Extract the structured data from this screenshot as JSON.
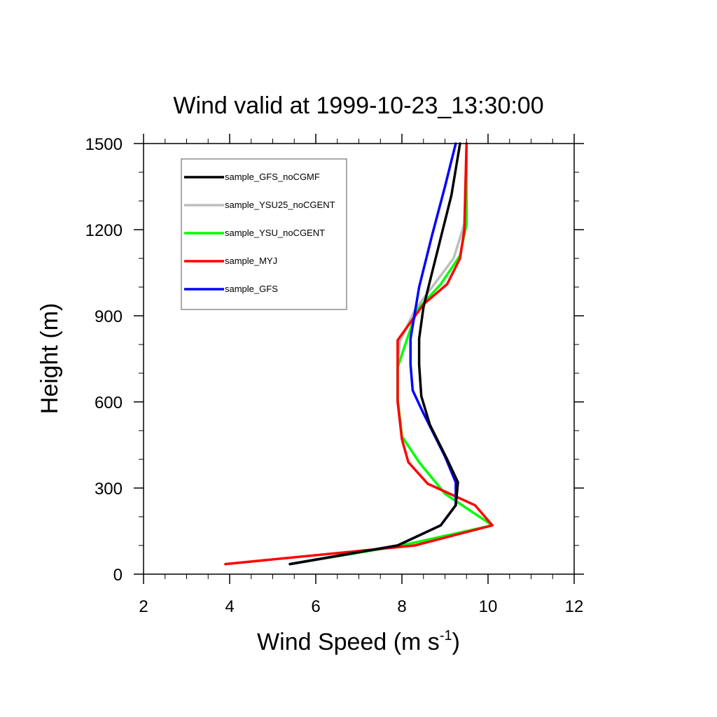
{
  "chart_data": {
    "type": "line",
    "title": "Wind valid at 1999-10-23_13:30:00",
    "xlabel": "Wind Speed (m s",
    "xlabel_sup": "-1",
    "xlabel_close": ")",
    "ylabel": "Height (m)",
    "xlim": [
      2,
      12
    ],
    "ylim": [
      0,
      1500
    ],
    "xticks": [
      2,
      4,
      6,
      8,
      10,
      12
    ],
    "yticks": [
      0,
      300,
      600,
      900,
      1200,
      1500
    ],
    "xtick_labels": [
      "2",
      "4",
      "6",
      "8",
      "10",
      "12"
    ],
    "ytick_labels": [
      "0",
      "300",
      "600",
      "900",
      "1200",
      "1500"
    ],
    "legend_placement": "top-left",
    "series": [
      {
        "name": "sample_GFS_noCGMF",
        "color": "#000000",
        "points": [
          [
            5.4,
            35
          ],
          [
            7.9,
            100
          ],
          [
            8.9,
            170
          ],
          [
            9.25,
            240
          ],
          [
            9.3,
            320
          ],
          [
            9.05,
            400
          ],
          [
            8.65,
            520
          ],
          [
            8.45,
            620
          ],
          [
            8.4,
            730
          ],
          [
            8.4,
            820
          ],
          [
            8.5,
            930
          ],
          [
            8.7,
            1050
          ],
          [
            8.95,
            1200
          ],
          [
            9.15,
            1320
          ],
          [
            9.35,
            1500
          ]
        ]
      },
      {
        "name": "sample_YSU25_noCGENT",
        "color": "#bdbdbd",
        "points": [
          [
            5.4,
            35
          ],
          [
            8.0,
            100
          ],
          [
            10.1,
            170
          ],
          [
            9.0,
            280
          ],
          [
            8.4,
            390
          ],
          [
            8.0,
            480
          ],
          [
            7.9,
            610
          ],
          [
            7.9,
            720
          ],
          [
            7.95,
            810
          ],
          [
            8.3,
            920
          ],
          [
            8.8,
            1020
          ],
          [
            9.2,
            1100
          ],
          [
            9.45,
            1220
          ],
          [
            9.5,
            1500
          ]
        ]
      },
      {
        "name": "sample_YSU_noCGENT",
        "color": "#00ff00",
        "points": [
          [
            5.4,
            35
          ],
          [
            8.0,
            100
          ],
          [
            10.1,
            170
          ],
          [
            9.0,
            280
          ],
          [
            8.4,
            390
          ],
          [
            8.0,
            480
          ],
          [
            7.9,
            610
          ],
          [
            7.9,
            720
          ],
          [
            8.1,
            810
          ],
          [
            8.35,
            920
          ],
          [
            8.9,
            1010
          ],
          [
            9.35,
            1110
          ],
          [
            9.5,
            1220
          ],
          [
            9.5,
            1500
          ]
        ]
      },
      {
        "name": "sample_MYJ",
        "color": "#ff0000",
        "points": [
          [
            3.9,
            35
          ],
          [
            8.3,
            100
          ],
          [
            10.1,
            170
          ],
          [
            9.7,
            240
          ],
          [
            8.6,
            315
          ],
          [
            8.15,
            390
          ],
          [
            8.0,
            470
          ],
          [
            7.9,
            600
          ],
          [
            7.9,
            720
          ],
          [
            7.9,
            815
          ],
          [
            8.5,
            940
          ],
          [
            9.05,
            1010
          ],
          [
            9.35,
            1100
          ],
          [
            9.45,
            1200
          ],
          [
            9.5,
            1500
          ]
        ]
      },
      {
        "name": "sample_GFS",
        "color": "#0000ff",
        "points": [
          [
            5.4,
            35
          ],
          [
            7.9,
            100
          ],
          [
            8.9,
            170
          ],
          [
            9.25,
            240
          ],
          [
            9.25,
            320
          ],
          [
            9.0,
            410
          ],
          [
            8.5,
            560
          ],
          [
            8.25,
            640
          ],
          [
            8.2,
            730
          ],
          [
            8.2,
            820
          ],
          [
            8.4,
            1000
          ],
          [
            8.7,
            1180
          ],
          [
            9.0,
            1350
          ],
          [
            9.15,
            1440
          ],
          [
            9.25,
            1500
          ]
        ]
      }
    ]
  }
}
